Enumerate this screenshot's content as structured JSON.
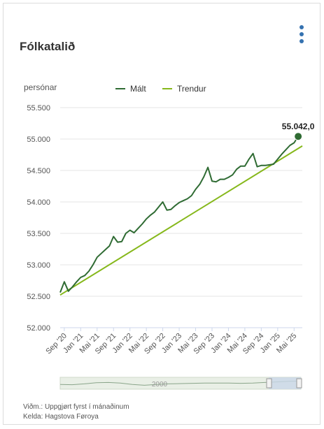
{
  "title": "Fólkatalið",
  "menu_icon": "more-vertical-icon",
  "colors": {
    "measured": "#2f6b33",
    "trend": "#86b81b",
    "grid": "#e6e6e6",
    "axis_text": "#555555",
    "navigator_fill": "#e9efe6",
    "navigator_selection": "#c9d7e8"
  },
  "chart_data": {
    "type": "line",
    "ylabel": "persónar",
    "ylim": [
      52000,
      55500
    ],
    "yticks": [
      52000,
      52500,
      53000,
      53500,
      54000,
      54500,
      55000,
      55500
    ],
    "ytick_labels": [
      "52.000",
      "52.500",
      "53.000",
      "53.500",
      "54.000",
      "54.500",
      "55.000",
      "55.500"
    ],
    "xlim": [
      "2020-08",
      "2025-07"
    ],
    "xticks": [
      "2020-09",
      "2021-01",
      "2021-05",
      "2021-09",
      "2022-01",
      "2022-05",
      "2022-09",
      "2023-01",
      "2023-05",
      "2023-09",
      "2024-01",
      "2024-05",
      "2024-09",
      "2025-01",
      "2025-05"
    ],
    "xtick_labels": [
      "Sep '20",
      "Jan '21",
      "Mai '21",
      "Sep '21",
      "Jan '22",
      "Mai '22",
      "Sep '22",
      "Jan '23",
      "Mai '23",
      "Sep '23",
      "Jan '24",
      "Mai '24",
      "Sep '24",
      "Jan '25",
      "Mai '25"
    ],
    "legend": {
      "position": "top-center"
    },
    "grid": true,
    "series": [
      {
        "name": "Mált",
        "x": [
          "2020-08",
          "2020-09",
          "2020-10",
          "2020-11",
          "2020-12",
          "2021-01",
          "2021-02",
          "2021-03",
          "2021-04",
          "2021-05",
          "2021-06",
          "2021-07",
          "2021-08",
          "2021-09",
          "2021-10",
          "2021-11",
          "2021-12",
          "2022-01",
          "2022-02",
          "2022-03",
          "2022-04",
          "2022-05",
          "2022-06",
          "2022-07",
          "2022-08",
          "2022-09",
          "2022-10",
          "2022-11",
          "2022-12",
          "2023-01",
          "2023-02",
          "2023-03",
          "2023-04",
          "2023-05",
          "2023-06",
          "2023-07",
          "2023-08",
          "2023-09",
          "2023-10",
          "2023-11",
          "2023-12",
          "2024-01",
          "2024-02",
          "2024-03",
          "2024-04",
          "2024-05",
          "2024-06",
          "2024-07",
          "2024-08",
          "2024-09",
          "2024-10",
          "2024-11",
          "2024-12",
          "2025-01",
          "2025-02",
          "2025-03",
          "2025-04",
          "2025-05",
          "2025-06"
        ],
        "values": [
          52560,
          52730,
          52580,
          52650,
          52730,
          52800,
          52830,
          52900,
          53000,
          53120,
          53180,
          53240,
          53300,
          53450,
          53360,
          53370,
          53500,
          53550,
          53510,
          53580,
          53650,
          53730,
          53790,
          53840,
          53920,
          54000,
          53870,
          53880,
          53940,
          53990,
          54020,
          54050,
          54100,
          54200,
          54280,
          54400,
          54550,
          54330,
          54320,
          54360,
          54360,
          54390,
          54430,
          54520,
          54570,
          54570,
          54680,
          54770,
          54560,
          54580,
          54580,
          54590,
          54600,
          54680,
          54760,
          54830,
          54900,
          54940,
          55042
        ]
      },
      {
        "name": "Trendur",
        "x": [
          "2020-08",
          "2025-07"
        ],
        "values": [
          52520,
          54890
        ]
      }
    ],
    "annotations": [
      {
        "text": "55.042,0",
        "x": "2025-06",
        "y": 55042
      }
    ]
  },
  "navigator": {
    "label": "2000"
  },
  "footer": {
    "note": "Viðm.: Uppgjørt fyrst í mánaðinum",
    "source": "Kelda: Hagstova Føroya"
  }
}
